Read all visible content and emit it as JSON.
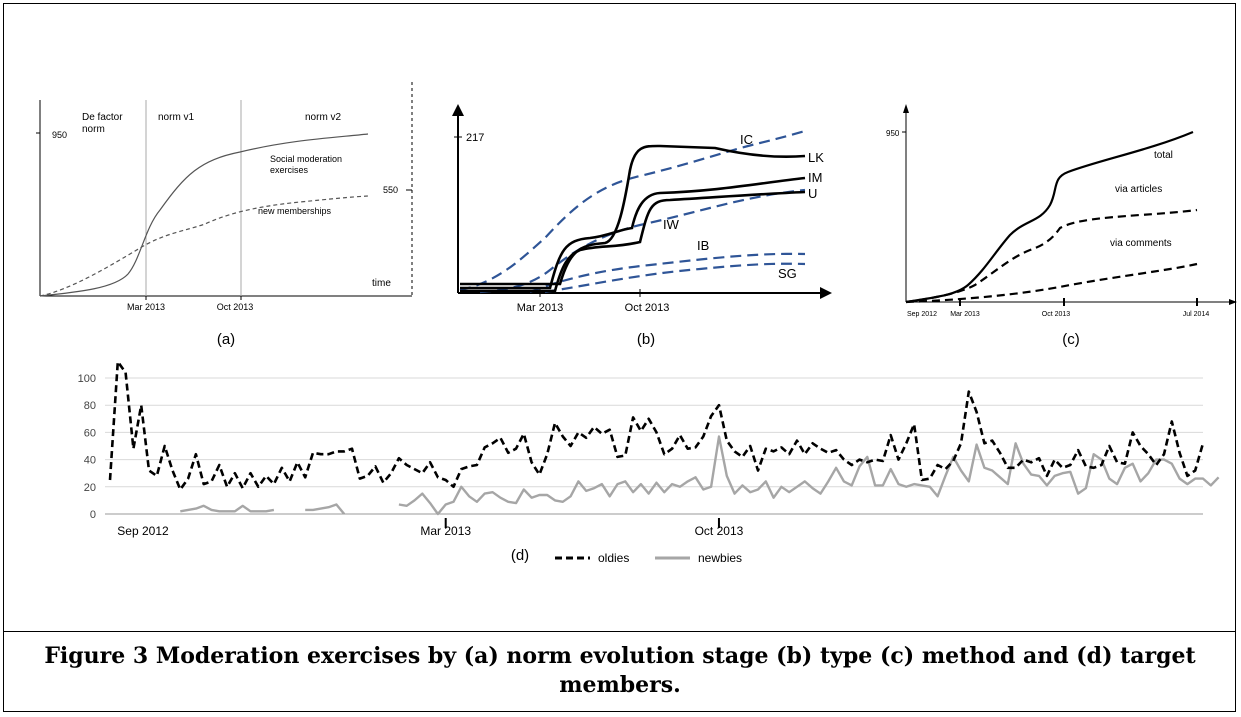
{
  "panels": {
    "a": {
      "label": "(a)",
      "y_tick": "950",
      "y_tick_right": "550",
      "x_ticks": [
        "Mar 2013",
        "Oct 2013"
      ],
      "xlabel": "time",
      "stages": [
        "De factor\nnorm",
        "norm v1",
        "norm v2"
      ],
      "annotations": [
        "Social moderation\nexercises",
        "new memberships"
      ]
    },
    "b": {
      "label": "(b)",
      "y_tick": "217",
      "x_ticks": [
        "Mar 2013",
        "Oct 2013"
      ],
      "series_labels": [
        "IC",
        "LK",
        "IM",
        "U",
        "IW",
        "IB",
        "SG"
      ]
    },
    "c": {
      "label": "(c)",
      "y_tick": "950",
      "x_ticks": [
        "Sep 2012",
        "Mar 2013",
        "Oct 2013",
        "Jul 2014"
      ],
      "series_labels": [
        "total",
        "via articles",
        "via comments"
      ]
    }
  },
  "chart_data": {
    "type": "line",
    "label": "(d)",
    "ylim": [
      0,
      100
    ],
    "y_ticks": [
      0,
      20,
      40,
      60,
      80,
      100
    ],
    "x_tick_labels": [
      "Sep 2012",
      "Mar 2013",
      "Oct 2013"
    ],
    "x_tick_index": [
      0,
      43,
      78
    ],
    "grid": true,
    "legend_position": "bottom-center",
    "series": [
      {
        "name": "oldies",
        "color": "#000000",
        "style": "dashed",
        "values": [
          25,
          112,
          104,
          48,
          80,
          32,
          28,
          50,
          32,
          18,
          26,
          44,
          22,
          24,
          36,
          20,
          30,
          19,
          30,
          20,
          28,
          22,
          34,
          24,
          38,
          27,
          45,
          44,
          44,
          46,
          46,
          48,
          26,
          28,
          35,
          23,
          30,
          41,
          36,
          33,
          30,
          38,
          27,
          25,
          20,
          33,
          35,
          36,
          49,
          52,
          56,
          45,
          48,
          59,
          38,
          29,
          44,
          67,
          57,
          50,
          60,
          56,
          64,
          59,
          62,
          42,
          43,
          71,
          61,
          70,
          60,
          44,
          48,
          58,
          48,
          49,
          57,
          72,
          80,
          54,
          46,
          42,
          50,
          32,
          48,
          46,
          49,
          44,
          54,
          44,
          52,
          48,
          45,
          47,
          40,
          36,
          40,
          38,
          40,
          39,
          58,
          40,
          52,
          66,
          25,
          26,
          36,
          33,
          39,
          52,
          90,
          75,
          52,
          54,
          45,
          34,
          34,
          40,
          38,
          41,
          28,
          40,
          34,
          36,
          47,
          35,
          34,
          36,
          50,
          38,
          37,
          60,
          50,
          44,
          36,
          44,
          68,
          45,
          28,
          32,
          52
        ],
        "gaps": []
      },
      {
        "name": "newbies",
        "color": "#a6a6a6",
        "style": "solid",
        "values": [
          null,
          null,
          null,
          null,
          null,
          null,
          null,
          null,
          null,
          2,
          3,
          4,
          6,
          3,
          2,
          2,
          2,
          6,
          2,
          2,
          2,
          3,
          null,
          null,
          null,
          3,
          3,
          4,
          5,
          7,
          0,
          null,
          null,
          null,
          null,
          null,
          null,
          7,
          6,
          10,
          15,
          8,
          0,
          7,
          9,
          20,
          13,
          9,
          15,
          16,
          12,
          9,
          8,
          18,
          12,
          14,
          14,
          10,
          9,
          13,
          24,
          17,
          19,
          22,
          13,
          22,
          24,
          16,
          22,
          15,
          23,
          16,
          22,
          20,
          24,
          27,
          18,
          20,
          57,
          28,
          15,
          21,
          16,
          18,
          24,
          12,
          20,
          16,
          20,
          24,
          19,
          15,
          24,
          34,
          24,
          21,
          35,
          42,
          21,
          21,
          33,
          22,
          20,
          22,
          21,
          20,
          13,
          28,
          42,
          32,
          24,
          51,
          34,
          32,
          27,
          22,
          52,
          37,
          29,
          28,
          21,
          28,
          30,
          31,
          15,
          19,
          44,
          40,
          26,
          22,
          34,
          37,
          24,
          30,
          40,
          40,
          37,
          26,
          22,
          26,
          26,
          21,
          27
        ]
      }
    ]
  },
  "legend": {
    "oldies": "oldies",
    "newbies": "newbies"
  },
  "caption": "Figure 3 Moderation exercises by (a) norm evolution stage (b) type (c) method and (d) target members."
}
